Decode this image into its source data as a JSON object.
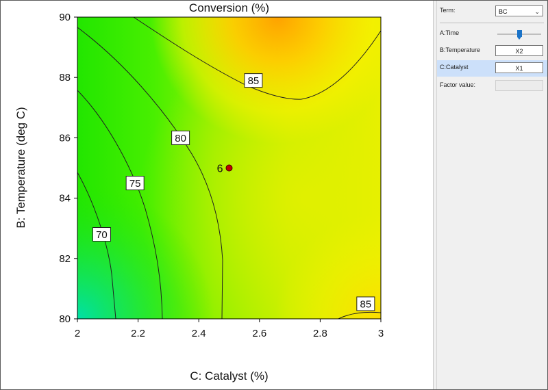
{
  "chart_data": {
    "type": "contour",
    "title": "Conversion (%)",
    "xlabel": "C: Catalyst (%)",
    "ylabel": "B: Temperature (deg C)",
    "xlim": [
      2,
      3
    ],
    "ylim": [
      80,
      90
    ],
    "x_ticks": [
      "2",
      "2.2",
      "2.4",
      "2.6",
      "2.8",
      "3"
    ],
    "y_ticks": [
      "80",
      "82",
      "84",
      "86",
      "88",
      "90"
    ],
    "contour_levels": [
      {
        "label": "70",
        "x": 2.08,
        "y": 82.8
      },
      {
        "label": "75",
        "x": 2.19,
        "y": 84.5
      },
      {
        "label": "80",
        "x": 2.34,
        "y": 86.0
      },
      {
        "label": "85",
        "x": 2.58,
        "y": 87.9
      },
      {
        "label": "85",
        "x": 2.95,
        "y": 80.5
      }
    ],
    "design_point": {
      "label": "6",
      "x": 2.5,
      "y": 85.0
    },
    "colormap": [
      "#00e0a8",
      "#33ee00",
      "#c8f000",
      "#ffe000",
      "#ffa200"
    ],
    "grid": false
  },
  "panel": {
    "term_label": "Term:",
    "term_value": "BC",
    "factors": [
      {
        "name": "A:Time",
        "kind": "slider",
        "slider_level": 0.5
      },
      {
        "name": "B:Temperature",
        "kind": "axis",
        "value": "X2"
      },
      {
        "name": "C:Catalyst",
        "kind": "axis",
        "value": "X1",
        "selected": true
      }
    ],
    "factor_value_label": "Factor value:",
    "factor_value": ""
  }
}
